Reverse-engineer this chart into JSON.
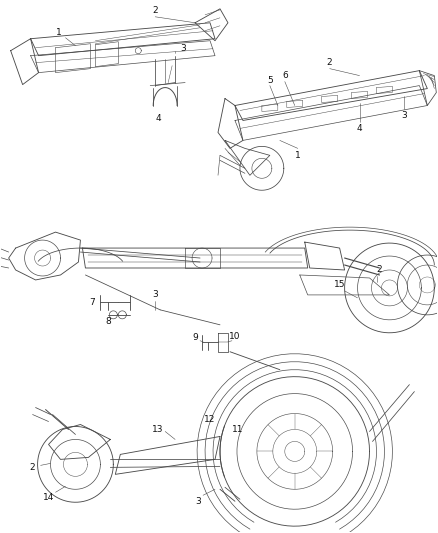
{
  "bg_color": "#ffffff",
  "line_color": "#4a4a4a",
  "lw": 0.7,
  "figsize": [
    4.38,
    5.33
  ],
  "dpi": 100,
  "label_fs": 6.5
}
